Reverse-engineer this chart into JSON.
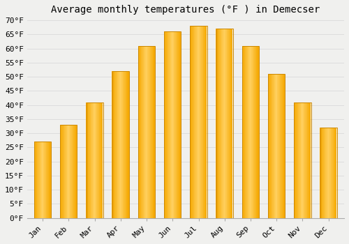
{
  "title": "Average monthly temperatures (°F ) in Demecser",
  "months": [
    "Jan",
    "Feb",
    "Mar",
    "Apr",
    "May",
    "Jun",
    "Jul",
    "Aug",
    "Sep",
    "Oct",
    "Nov",
    "Dec"
  ],
  "values": [
    27,
    33,
    41,
    52,
    61,
    66,
    68,
    67,
    61,
    51,
    41,
    32
  ],
  "bar_color_left": "#F5A800",
  "bar_color_center": "#FFD060",
  "bar_color_right": "#F5A800",
  "bar_edge_color": "#CC8800",
  "ylim": [
    0,
    70
  ],
  "yticks": [
    0,
    5,
    10,
    15,
    20,
    25,
    30,
    35,
    40,
    45,
    50,
    55,
    60,
    65,
    70
  ],
  "ytick_labels": [
    "0°F",
    "5°F",
    "10°F",
    "15°F",
    "20°F",
    "25°F",
    "30°F",
    "35°F",
    "40°F",
    "45°F",
    "50°F",
    "55°F",
    "60°F",
    "65°F",
    "70°F"
  ],
  "grid_color": "#dddddd",
  "background_color": "#f0f0ee",
  "title_fontsize": 10,
  "tick_fontsize": 8,
  "bar_width": 0.65
}
